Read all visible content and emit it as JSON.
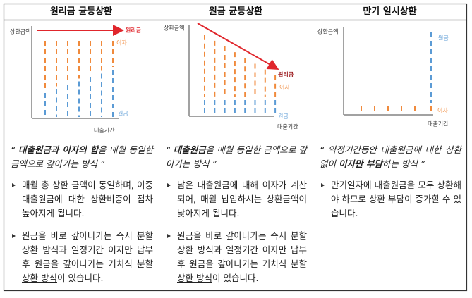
{
  "columns": [
    {
      "header": "원리금 균등상환",
      "diagram": {
        "y_label": "상환금액",
        "x_label": "대출기간",
        "total_label": "원리금",
        "interest_label": "이자",
        "principal_label": "원금"
      },
      "summary": [
        {
          "plain": "“ "
        },
        {
          "bold": "대출원금과 이자의 합"
        },
        {
          "plain": "을 매월 동일한 금액으로 갚아가는 방식 ”"
        }
      ],
      "bullets": [
        [
          {
            "plain": "매월 총 상환 금액이 동일하며, 이중 대출원금에 대한 상환비중이 점차 높아지게 됩니다."
          }
        ],
        [
          {
            "plain": "원금을 바로 갚아나가는 "
          },
          {
            "underline": "즉시 분할상환 방식"
          },
          {
            "plain": "과 일정기간 이자만 납부 후 원금을 갚아나가는 "
          },
          {
            "underline": "거치식 분할상환 방식"
          },
          {
            "plain": "이 있습니다."
          }
        ]
      ]
    },
    {
      "header": "원금 균등상환",
      "diagram": {
        "y_label": "상환금액",
        "x_label": "대출기간",
        "total_label": "원리금",
        "interest_label": "이자",
        "principal_label": "원금"
      },
      "summary": [
        {
          "plain": "“ "
        },
        {
          "bold": "대출원금"
        },
        {
          "plain": "을 매월 동일한 금액으로 갚아가는 방식 ”"
        }
      ],
      "bullets": [
        [
          {
            "plain": "남은 대출원금에 대해 이자가 계산되어, 매월 납입하시는 상환금액이 낮아지게 됩니다."
          }
        ],
        [
          {
            "plain": "원금을 바로 갚아나가는 "
          },
          {
            "underline": "즉시 분할상환 방식"
          },
          {
            "plain": "과 일정기간 이자만 납부 후 원금을 갚아나가는 "
          },
          {
            "underline": "거치식 분할상환 방식"
          },
          {
            "plain": "이 있습니다."
          }
        ]
      ]
    },
    {
      "header": "만기 일시상환",
      "diagram": {
        "y_label": "상환금액",
        "x_label": "대출기간",
        "interest_label": "이자",
        "principal_label": "원금"
      },
      "summary": [
        {
          "plain": "“ 약정기간동안 대출원금에 대한 상환 없이 "
        },
        {
          "bold": "이자만 부담"
        },
        {
          "plain": "하는 방식 ”"
        }
      ],
      "bullets": [
        [
          {
            "plain": "만기일자에 대출원금을 모두 상환해야 하므로 상환 부담이 증가할 수 있습니다."
          }
        ]
      ]
    }
  ]
}
